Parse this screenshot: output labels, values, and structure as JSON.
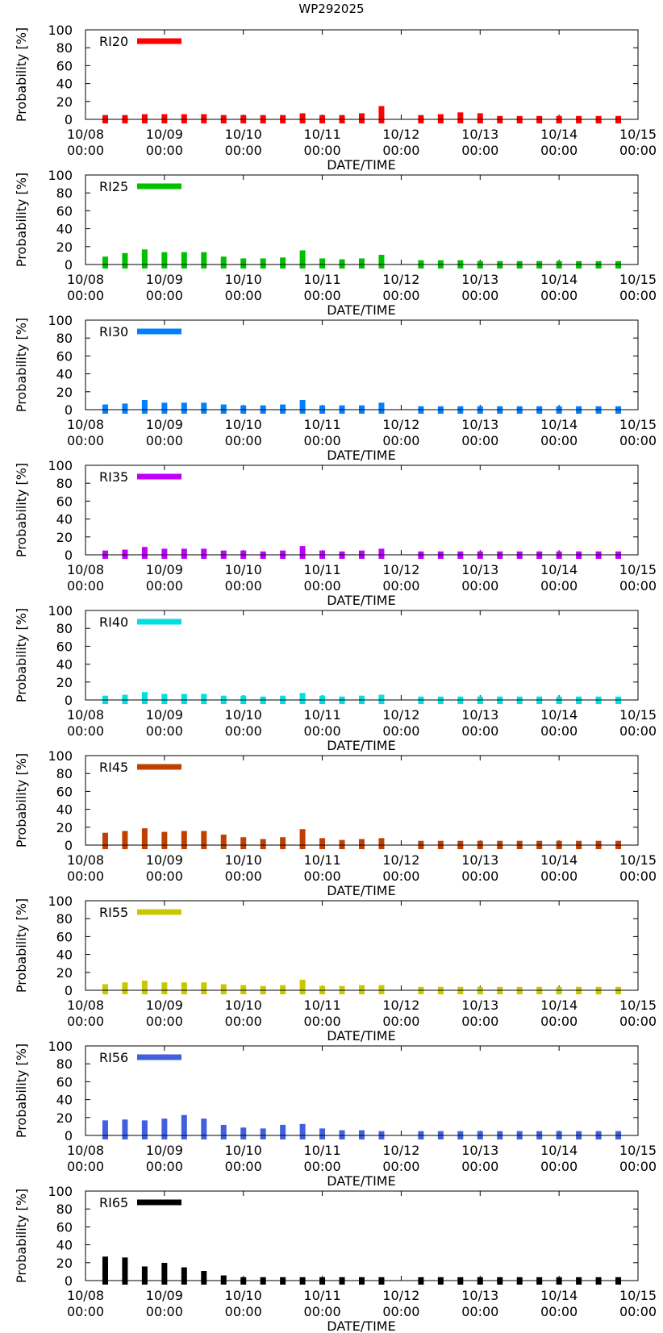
{
  "title": "WP292025",
  "chart_data": [
    {
      "type": "bar",
      "legend": "RI20",
      "color": "#ff0000",
      "ylabel": "Probability [%]",
      "xlabel": "DATE/TIME",
      "ylim": [
        0,
        100
      ],
      "yticks": [
        0,
        20,
        40,
        60,
        80,
        100
      ],
      "xticks": [
        "10/08 00:00",
        "10/09 00:00",
        "10/10 00:00",
        "10/11 00:00",
        "10/12 00:00",
        "10/13 00:00",
        "10/14 00:00",
        "10/15 00:00"
      ],
      "x": [
        6,
        12,
        18,
        24,
        30,
        36,
        42,
        48,
        54,
        60,
        66,
        72,
        78,
        84,
        90,
        102,
        108,
        114,
        120,
        126,
        132,
        138,
        144,
        150,
        156,
        162
      ],
      "values": [
        3,
        3,
        4,
        4,
        4,
        4,
        3,
        3,
        3,
        3,
        5,
        3,
        3,
        5,
        13,
        3,
        4,
        6,
        5,
        2,
        2,
        2,
        2,
        2,
        2,
        2
      ]
    },
    {
      "type": "bar",
      "legend": "RI25",
      "color": "#00c000",
      "ylabel": "Probability [%]",
      "xlabel": "DATE/TIME",
      "ylim": [
        0,
        100
      ],
      "yticks": [
        0,
        20,
        40,
        60,
        80,
        100
      ],
      "xticks": [
        "10/08 00:00",
        "10/09 00:00",
        "10/10 00:00",
        "10/11 00:00",
        "10/12 00:00",
        "10/13 00:00",
        "10/14 00:00",
        "10/15 00:00"
      ],
      "x": [
        6,
        12,
        18,
        24,
        30,
        36,
        42,
        48,
        54,
        60,
        66,
        72,
        78,
        84,
        90,
        102,
        108,
        114,
        120,
        126,
        132,
        138,
        144,
        150,
        156,
        162
      ],
      "values": [
        7,
        11,
        15,
        12,
        12,
        12,
        7,
        5,
        5,
        6,
        14,
        5,
        4,
        5,
        9,
        3,
        3,
        3,
        2,
        2,
        2,
        2,
        2,
        2,
        2,
        2
      ]
    },
    {
      "type": "bar",
      "legend": "RI30",
      "color": "#0080ff",
      "ylabel": "Probability [%]",
      "xlabel": "DATE/TIME",
      "ylim": [
        0,
        100
      ],
      "yticks": [
        0,
        20,
        40,
        60,
        80,
        100
      ],
      "xticks": [
        "10/08 00:00",
        "10/09 00:00",
        "10/10 00:00",
        "10/11 00:00",
        "10/12 00:00",
        "10/13 00:00",
        "10/14 00:00",
        "10/15 00:00"
      ],
      "x": [
        6,
        12,
        18,
        24,
        30,
        36,
        42,
        48,
        54,
        60,
        66,
        72,
        78,
        84,
        90,
        102,
        108,
        114,
        120,
        126,
        132,
        138,
        144,
        150,
        156,
        162
      ],
      "values": [
        4,
        5,
        9,
        6,
        6,
        6,
        4,
        3,
        3,
        4,
        9,
        3,
        3,
        3,
        6,
        2,
        2,
        2,
        2,
        2,
        2,
        2,
        2,
        2,
        2,
        2
      ]
    },
    {
      "type": "bar",
      "legend": "RI35",
      "color": "#c000ff",
      "ylabel": "Probability [%]",
      "xlabel": "DATE/TIME",
      "ylim": [
        0,
        100
      ],
      "yticks": [
        0,
        20,
        40,
        60,
        80,
        100
      ],
      "xticks": [
        "10/08 00:00",
        "10/09 00:00",
        "10/10 00:00",
        "10/11 00:00",
        "10/12 00:00",
        "10/13 00:00",
        "10/14 00:00",
        "10/15 00:00"
      ],
      "x": [
        6,
        12,
        18,
        24,
        30,
        36,
        42,
        48,
        54,
        60,
        66,
        72,
        78,
        84,
        90,
        102,
        108,
        114,
        120,
        126,
        132,
        138,
        144,
        150,
        156,
        162
      ],
      "values": [
        3,
        4,
        7,
        5,
        5,
        5,
        3,
        3,
        2,
        3,
        8,
        3,
        2,
        3,
        5,
        2,
        2,
        2,
        2,
        2,
        2,
        2,
        2,
        2,
        2,
        2
      ]
    },
    {
      "type": "bar",
      "legend": "RI40",
      "color": "#00e0e0",
      "ylabel": "Probability [%]",
      "xlabel": "DATE/TIME",
      "ylim": [
        0,
        100
      ],
      "yticks": [
        0,
        20,
        40,
        60,
        80,
        100
      ],
      "xticks": [
        "10/08 00:00",
        "10/09 00:00",
        "10/10 00:00",
        "10/11 00:00",
        "10/12 00:00",
        "10/13 00:00",
        "10/14 00:00",
        "10/15 00:00"
      ],
      "x": [
        6,
        12,
        18,
        24,
        30,
        36,
        42,
        48,
        54,
        60,
        66,
        72,
        78,
        84,
        90,
        102,
        108,
        114,
        120,
        126,
        132,
        138,
        144,
        150,
        156,
        162
      ],
      "values": [
        3,
        4,
        7,
        5,
        5,
        5,
        3,
        3,
        2,
        3,
        6,
        3,
        2,
        3,
        4,
        2,
        2,
        2,
        2,
        2,
        2,
        2,
        2,
        2,
        2,
        2
      ]
    },
    {
      "type": "bar",
      "legend": "RI45",
      "color": "#c04000",
      "ylabel": "Probability [%]",
      "xlabel": "DATE/TIME",
      "ylim": [
        0,
        100
      ],
      "yticks": [
        0,
        20,
        40,
        60,
        80,
        100
      ],
      "xticks": [
        "10/08 00:00",
        "10/09 00:00",
        "10/10 00:00",
        "10/11 00:00",
        "10/12 00:00",
        "10/13 00:00",
        "10/14 00:00",
        "10/15 00:00"
      ],
      "x": [
        6,
        12,
        18,
        24,
        30,
        36,
        42,
        48,
        54,
        60,
        66,
        72,
        78,
        84,
        90,
        102,
        108,
        114,
        120,
        126,
        132,
        138,
        144,
        150,
        156,
        162
      ],
      "values": [
        12,
        14,
        17,
        13,
        14,
        14,
        10,
        7,
        5,
        7,
        16,
        6,
        4,
        5,
        6,
        3,
        3,
        3,
        3,
        3,
        3,
        3,
        3,
        3,
        3,
        3
      ]
    },
    {
      "type": "bar",
      "legend": "RI55",
      "color": "#c8c800",
      "ylabel": "Probability [%]",
      "xlabel": "DATE/TIME",
      "ylim": [
        0,
        100
      ],
      "yticks": [
        0,
        20,
        40,
        60,
        80,
        100
      ],
      "xticks": [
        "10/08 00:00",
        "10/09 00:00",
        "10/10 00:00",
        "10/11 00:00",
        "10/12 00:00",
        "10/13 00:00",
        "10/14 00:00",
        "10/15 00:00"
      ],
      "x": [
        6,
        12,
        18,
        24,
        30,
        36,
        42,
        48,
        54,
        60,
        66,
        72,
        78,
        84,
        90,
        102,
        108,
        114,
        120,
        126,
        132,
        138,
        144,
        150,
        156,
        162
      ],
      "values": [
        5,
        7,
        9,
        7,
        7,
        7,
        5,
        4,
        3,
        4,
        10,
        3,
        3,
        4,
        4,
        2,
        2,
        2,
        2,
        2,
        2,
        2,
        2,
        2,
        2,
        2
      ]
    },
    {
      "type": "bar",
      "legend": "RI56",
      "color": "#4060e0",
      "ylabel": "Probability [%]",
      "xlabel": "DATE/TIME",
      "ylim": [
        0,
        100
      ],
      "yticks": [
        0,
        20,
        40,
        60,
        80,
        100
      ],
      "xticks": [
        "10/08 00:00",
        "10/09 00:00",
        "10/10 00:00",
        "10/11 00:00",
        "10/12 00:00",
        "10/13 00:00",
        "10/14 00:00",
        "10/15 00:00"
      ],
      "x": [
        6,
        12,
        18,
        24,
        30,
        36,
        42,
        48,
        54,
        60,
        66,
        72,
        78,
        84,
        90,
        102,
        108,
        114,
        120,
        126,
        132,
        138,
        144,
        150,
        156,
        162
      ],
      "values": [
        15,
        16,
        15,
        17,
        21,
        17,
        10,
        7,
        6,
        10,
        11,
        6,
        4,
        4,
        3,
        3,
        3,
        3,
        3,
        3,
        3,
        3,
        3,
        3,
        3,
        3
      ]
    },
    {
      "type": "bar",
      "legend": "RI65",
      "color": "#000000",
      "ylabel": "Probability [%]",
      "xlabel": "DATE/TIME",
      "ylim": [
        0,
        100
      ],
      "yticks": [
        0,
        20,
        40,
        60,
        80,
        100
      ],
      "xticks": [
        "10/08 00:00",
        "10/09 00:00",
        "10/10 00:00",
        "10/11 00:00",
        "10/12 00:00",
        "10/13 00:00",
        "10/14 00:00",
        "10/15 00:00"
      ],
      "x": [
        6,
        12,
        18,
        24,
        30,
        36,
        42,
        48,
        54,
        60,
        66,
        72,
        78,
        84,
        90,
        102,
        108,
        114,
        120,
        126,
        132,
        138,
        144,
        150,
        156,
        162
      ],
      "values": [
        25,
        24,
        14,
        18,
        13,
        9,
        4,
        2,
        2,
        2,
        2,
        2,
        2,
        2,
        2,
        2,
        2,
        2,
        2,
        2,
        2,
        2,
        2,
        2,
        2,
        2
      ]
    }
  ]
}
